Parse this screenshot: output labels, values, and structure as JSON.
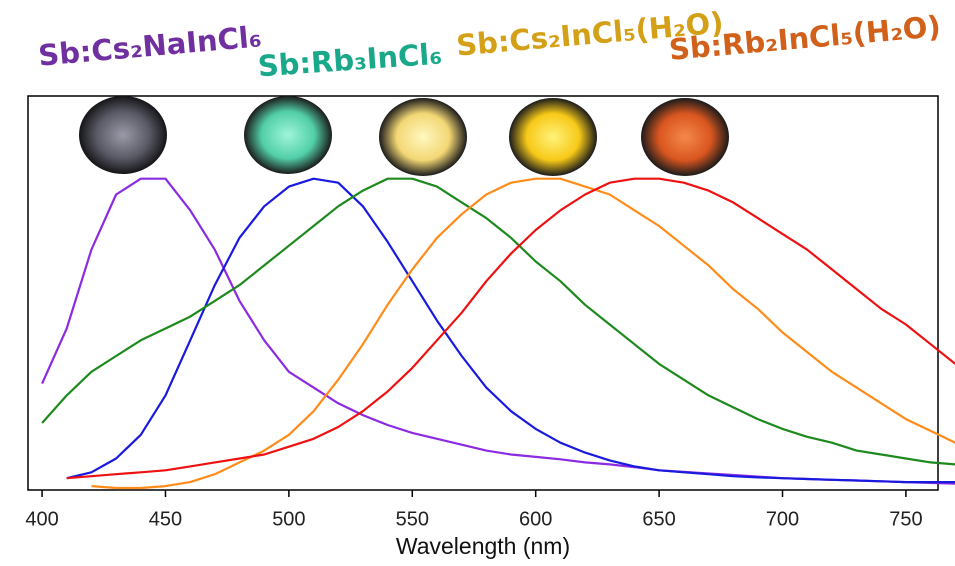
{
  "chart_data": {
    "type": "line",
    "xlabel": "Wavelength (nm)",
    "annotations": [
      {
        "text": "Sb:Cs₂NaInCl₆",
        "color": "#7030a0"
      },
      {
        "text": "Sb:Rb₃InCl₆",
        "color": "#1aa88a"
      },
      {
        "text": "Sb:Cs₂InCl₅(H₂O)",
        "color": "#d4a017"
      },
      {
        "text": "Sb:Rb₂InCl₅(H₂O)",
        "color": "#d0601a"
      }
    ],
    "x": [
      400,
      410,
      420,
      430,
      440,
      450,
      460,
      470,
      480,
      490,
      500,
      510,
      520,
      530,
      540,
      550,
      560,
      570,
      580,
      590,
      600,
      610,
      620,
      630,
      640,
      650,
      660,
      670,
      680,
      690,
      700,
      710,
      720,
      730,
      740,
      750,
      760,
      770
    ],
    "series": [
      {
        "color": "#8b2be2",
        "values": [
          0.27,
          0.41,
          0.61,
          0.75,
          0.79,
          0.79,
          0.71,
          0.61,
          0.48,
          0.38,
          0.3,
          0.26,
          0.22,
          0.19,
          0.165,
          0.145,
          0.13,
          0.115,
          0.1,
          0.09,
          0.084,
          0.078,
          0.07,
          0.065,
          0.058,
          0.05,
          0.046,
          0.042,
          0.038,
          0.034,
          0.03,
          0.028,
          0.026,
          0.024,
          0.022,
          0.02,
          0.018,
          0.016
        ]
      },
      {
        "color": "#1a1adf",
        "values": [
          null,
          0.03,
          0.045,
          0.08,
          0.14,
          0.24,
          0.38,
          0.52,
          0.64,
          0.72,
          0.77,
          0.79,
          0.78,
          0.72,
          0.63,
          0.53,
          0.43,
          0.34,
          0.26,
          0.2,
          0.155,
          0.12,
          0.095,
          0.075,
          0.06,
          0.05,
          0.045,
          0.04,
          0.035,
          0.032,
          0.03,
          0.028,
          0.026,
          0.024,
          0.022,
          0.02,
          0.02,
          0.02
        ]
      },
      {
        "color": "#1e8a1e",
        "values": [
          0.17,
          0.24,
          0.3,
          0.34,
          0.38,
          0.41,
          0.44,
          0.48,
          0.52,
          0.57,
          0.62,
          0.67,
          0.72,
          0.76,
          0.79,
          0.79,
          0.77,
          0.73,
          0.69,
          0.64,
          0.58,
          0.53,
          0.47,
          0.42,
          0.37,
          0.32,
          0.28,
          0.24,
          0.21,
          0.18,
          0.155,
          0.135,
          0.12,
          0.1,
          0.09,
          0.08,
          0.07,
          0.065
        ]
      },
      {
        "color": "#ff8c1a",
        "values": [
          null,
          null,
          0.01,
          0.005,
          0.005,
          0.01,
          0.02,
          0.04,
          0.07,
          0.1,
          0.14,
          0.2,
          0.28,
          0.37,
          0.47,
          0.56,
          0.64,
          0.7,
          0.75,
          0.78,
          0.79,
          0.79,
          0.77,
          0.75,
          0.71,
          0.67,
          0.62,
          0.57,
          0.51,
          0.46,
          0.4,
          0.35,
          0.3,
          0.26,
          0.22,
          0.18,
          0.15,
          0.12
        ]
      },
      {
        "color": "#ee1111",
        "values": [
          null,
          0.03,
          0.035,
          0.04,
          0.045,
          0.05,
          0.06,
          0.07,
          0.08,
          0.09,
          0.11,
          0.13,
          0.16,
          0.2,
          0.25,
          0.31,
          0.38,
          0.45,
          0.53,
          0.6,
          0.66,
          0.71,
          0.75,
          0.78,
          0.79,
          0.79,
          0.78,
          0.76,
          0.73,
          0.69,
          0.65,
          0.61,
          0.56,
          0.51,
          0.46,
          0.42,
          0.37,
          0.32
        ]
      }
    ],
    "xlim": [
      394.3,
      763
    ],
    "ylim": [
      0,
      1
    ],
    "xticks": [
      400,
      450,
      500,
      550,
      600,
      650,
      700,
      750
    ]
  }
}
